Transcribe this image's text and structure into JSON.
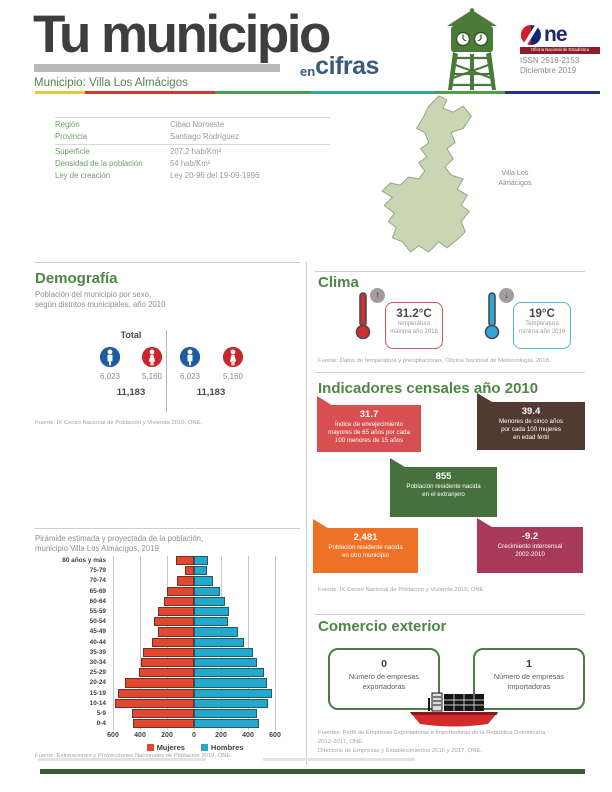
{
  "header": {
    "title": "Tu municipio",
    "subtitle_en": "en",
    "subtitle_cifras": "cifras",
    "municipio_label": "Municipio: Villa Los Almácigos",
    "one_text": "ne",
    "one_tagline": "Oficina Nacional de Estadística",
    "issn": "ISSN 2518-2153",
    "date": "Diciembre 2019",
    "strip_colors": [
      "#e9c73a",
      "#d2382f",
      "#4f9e49",
      "#2fa8a4",
      "#4f9e49",
      "#22318f"
    ]
  },
  "info_table": {
    "rows": [
      {
        "label": "Región",
        "value": "Cibao Noroeste"
      },
      {
        "label": "Provincia",
        "value": "Santiago Rodríguez"
      },
      {
        "label": "Superficie",
        "value": "207.2 hab/Km²"
      },
      {
        "label": "Densidad de la población",
        "value": "54 hab/Km²"
      },
      {
        "label": "Ley de creación",
        "value": "Ley 20-96 del 19-09-1996"
      }
    ]
  },
  "map": {
    "label": "Villa Los\nAlmácigos"
  },
  "demografia": {
    "heading": "Demografía",
    "subtitle": "Población del municipio por sexo,\nsegún distritos municipales, año 2010",
    "total_label": "Total",
    "groups": [
      {
        "male": "6,023",
        "female": "5,160",
        "total": "11,183"
      },
      {
        "male": "6,023",
        "female": "5,160",
        "total": "11,183"
      }
    ],
    "fuente": "Fuente: IX Censo Nacional de Población y Vivienda 2010, ONE.",
    "male_color": "#1d5d9e",
    "female_color": "#c9252c"
  },
  "piramide": {
    "title": "Pirámide estimada y proyectada de la población,\nmunicipio Villa Los Almácigos, 2019",
    "fuente": "Fuente: Estimaciones y Proyecciones Nacionales de Población 2019, ONE."
  },
  "chart_data": {
    "type": "bar",
    "variant": "population_pyramid",
    "title": "Pirámide estimada y proyectada de la población, municipio Villa Los Almácigos, 2019",
    "categories": [
      "80 años y más",
      "75-79",
      "70-74",
      "65-69",
      "60-64",
      "55-59",
      "50-54",
      "45-49",
      "40-44",
      "35-39",
      "30-34",
      "25-29",
      "20-24",
      "15-19",
      "10-14",
      "5-9",
      "0-4"
    ],
    "series": [
      {
        "name": "Mujeres",
        "side": "left",
        "color": "#e0492f",
        "values": [
          130,
          70,
          125,
          200,
          220,
          270,
          295,
          270,
          310,
          375,
          390,
          405,
          510,
          565,
          585,
          460,
          455
        ]
      },
      {
        "name": "Hombres",
        "side": "right",
        "color": "#25a8cd",
        "values": [
          100,
          95,
          140,
          190,
          230,
          260,
          250,
          325,
          370,
          440,
          470,
          515,
          540,
          580,
          550,
          465,
          485
        ]
      }
    ],
    "xmax": 600,
    "xticks": [
      "600",
      "400",
      "200",
      "0",
      "200",
      "400",
      "600"
    ],
    "grid": true,
    "legend_position": "bottom"
  },
  "clima": {
    "heading": "Clima",
    "max": {
      "value": "31.2°C",
      "text": "temperatura\nmáxima año 2018",
      "color": "#d22c35",
      "box_border": "#cf5560",
      "arrow": "↑"
    },
    "min": {
      "value": "19°C",
      "text": "Temperatura\nmínima año 2018",
      "color": "#31a5d6",
      "box_border": "#56b4da",
      "arrow": "↓"
    },
    "fuente": "Fuente: Datos de temperatura y precipitaciones, Oficina Nacional de Meteorología, 2018."
  },
  "indicadores": {
    "heading": "Indicadores censales año 2010",
    "cards": [
      {
        "value": "31.7",
        "text": "Índice de envejecimiento\nmayores de 65 años por cada\n100 menores de 15 años",
        "color": "#d84f51"
      },
      {
        "value": "39.4",
        "text": "Menores de cinco años\npor cada 100 mujeres\nen edad fértil",
        "color": "#523931"
      },
      {
        "value": "855",
        "text": "Población residente nacida\nen el extranjero",
        "color": "#46703c"
      },
      {
        "value": "2,481",
        "text": "Población residente nacida\nen otro municipio",
        "color": "#ee7125"
      },
      {
        "value": "-9.2",
        "text": "Crecimiento intercensal\n2002-2010",
        "color": "#a63a58"
      }
    ],
    "fuente": "Fuente: IX Censo Nacional de Población y Vivienda 2010, ONE"
  },
  "comercio": {
    "heading": "Comercio exterior",
    "boxes": [
      {
        "value": "0",
        "text": "Número de empresas\nexportadoras"
      },
      {
        "value": "1",
        "text": "Número de empresas\nimportadoras"
      }
    ],
    "fuentes": "Fuentes: Perfil de Empresas Exportadoras e Importadoras de la República Dominicana\n2012-2017, ONE.\nDirectorio de Empresas y Establecimientos 2016 y 2017, ONE."
  },
  "colors": {
    "accent_green": "#4e8646",
    "footer_bar": "#3a5c33",
    "map_fill": "#c9d6b3",
    "tower_green": "#4b7b3a"
  }
}
